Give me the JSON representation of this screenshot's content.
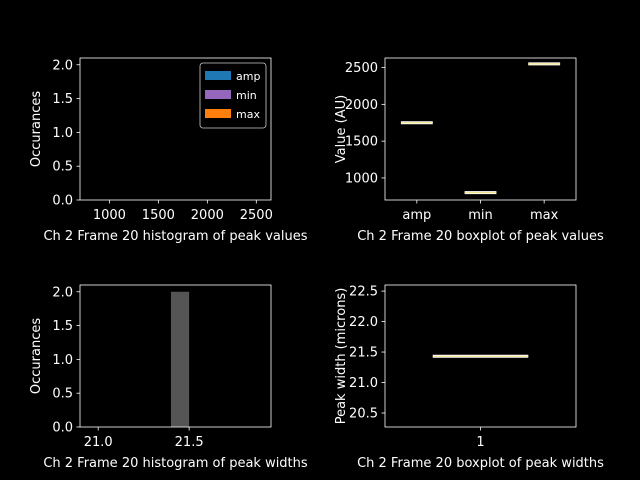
{
  "chart_data": [
    {
      "type": "histogram",
      "xlabel": "Ch 2 Frame 20 histogram of peak values",
      "ylabel": "Occurances",
      "xlim": [
        700,
        2650
      ],
      "ylim": [
        0,
        2.1
      ],
      "xticks": [
        1000,
        1500,
        2000,
        2500
      ],
      "yticks": [
        0.0,
        0.5,
        1.0,
        1.5,
        2.0
      ],
      "legend": {
        "placement": "top-right",
        "entries": [
          {
            "label": "amp",
            "color": "#1f77b4"
          },
          {
            "label": "min",
            "color": "#9467bd"
          },
          {
            "label": "max",
            "color": "#ff7f0e"
          }
        ]
      },
      "bars": []
    },
    {
      "type": "boxplot",
      "xlabel": "Ch 2 Frame 20 boxplot of peak values",
      "ylabel": "Value (AU)",
      "categories": [
        "amp",
        "min",
        "max"
      ],
      "values": [
        1750,
        800,
        2550
      ],
      "ylim": [
        700,
        2630
      ],
      "yticks": [
        1000,
        1500,
        2000,
        2500
      ]
    },
    {
      "type": "histogram",
      "xlabel": "Ch 2 Frame 20 histogram of peak widths",
      "ylabel": "Occurances",
      "xlim": [
        20.9,
        21.95
      ],
      "ylim": [
        0,
        2.1
      ],
      "xticks": [
        21.0,
        21.5
      ],
      "yticks": [
        0.0,
        0.5,
        1.0,
        1.5,
        2.0
      ],
      "bars": [
        {
          "x0": 21.4,
          "x1": 21.5,
          "value": 2
        }
      ],
      "bar_color": "#555555"
    },
    {
      "type": "boxplot",
      "xlabel": "Ch 2 Frame 20 boxplot of peak widths",
      "ylabel": "Peak width (microns)",
      "categories": [
        "1"
      ],
      "values": [
        21.43
      ],
      "ylim": [
        20.27,
        22.6
      ],
      "yticks": [
        20.5,
        21.0,
        21.5,
        22.0,
        22.5
      ]
    }
  ],
  "colors": {
    "background": "#000000",
    "axes": "#ffffff",
    "median": "#f0e68c"
  }
}
